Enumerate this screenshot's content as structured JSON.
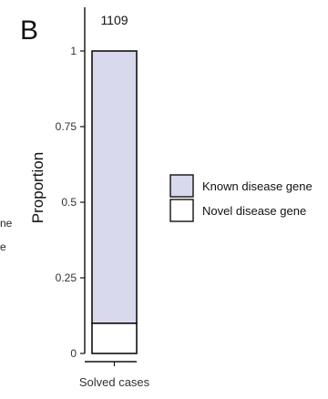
{
  "panel_label": "B",
  "clipped_text": [
    "ne",
    "e"
  ],
  "colors": {
    "known": "#d9d9ee",
    "novel": "#ffffff",
    "stroke": "#111111"
  },
  "chart_data": {
    "type": "bar",
    "stacked": true,
    "categories": [
      "Solved cases"
    ],
    "bar_top_label": "1109",
    "ylabel": "Proportion",
    "xlabel": "",
    "ylim": [
      0,
      1
    ],
    "yticks": [
      0,
      0.25,
      0.5,
      0.75,
      1
    ],
    "ytick_labels": [
      "0",
      "0.25",
      "0.5",
      "0.75",
      "1"
    ],
    "series": [
      {
        "name": "Novel disease gene",
        "values": [
          0.1
        ]
      },
      {
        "name": "Known disease gene",
        "values": [
          0.9
        ]
      }
    ],
    "legend": [
      {
        "label": "Known disease gene",
        "color_key": "known"
      },
      {
        "label": "Novel disease gene",
        "color_key": "novel"
      }
    ],
    "legend_position": "right",
    "grid": false
  }
}
